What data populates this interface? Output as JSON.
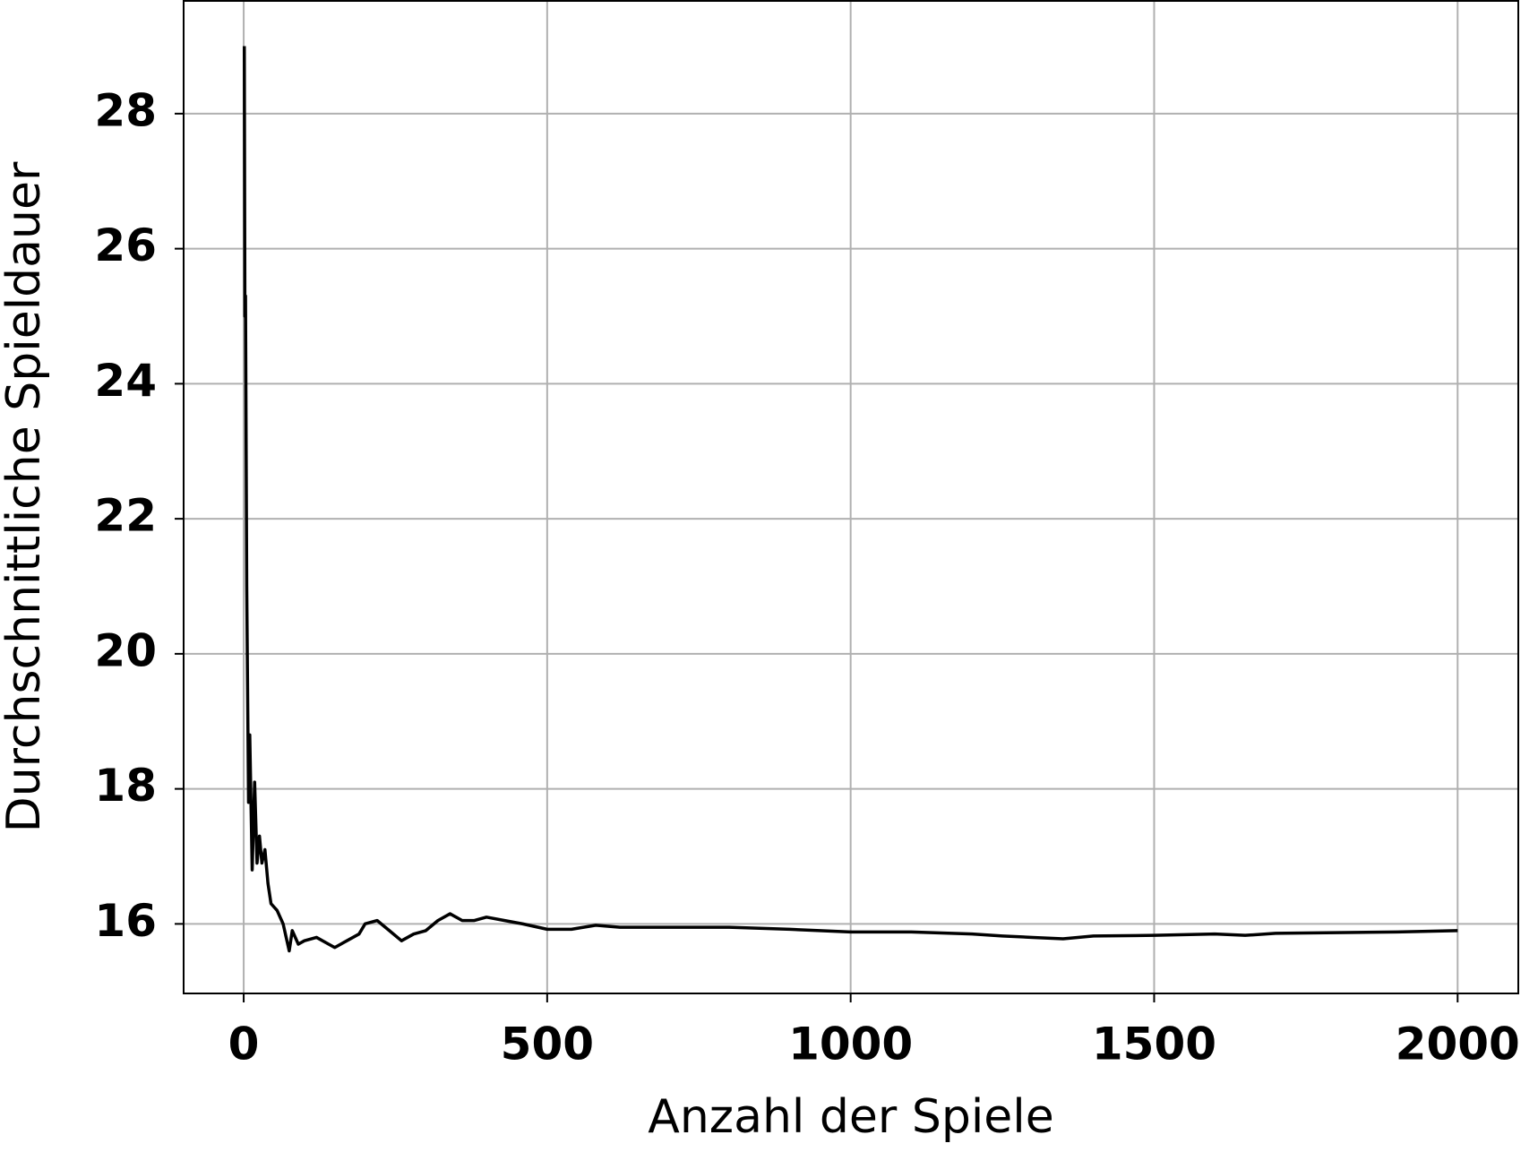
{
  "chart_data": {
    "type": "line",
    "xlabel": "Anzahl der Spiele",
    "ylabel": "Durchschnittliche Spieldauer",
    "x": [
      1,
      2,
      3,
      5,
      8,
      10,
      14,
      18,
      22,
      26,
      30,
      35,
      40,
      45,
      55,
      65,
      75,
      80,
      90,
      100,
      120,
      140,
      150,
      170,
      190,
      200,
      220,
      240,
      260,
      280,
      300,
      320,
      340,
      360,
      380,
      400,
      430,
      460,
      500,
      540,
      580,
      620,
      700,
      800,
      900,
      1000,
      1100,
      1200,
      1250,
      1300,
      1350,
      1400,
      1500,
      1600,
      1650,
      1700,
      1800,
      1900,
      2000
    ],
    "series": [
      {
        "name": "Durchschnittliche Spieldauer",
        "color": "#000000",
        "values": [
          29,
          25,
          25.3,
          21,
          17.8,
          18.8,
          16.8,
          18.1,
          16.9,
          17.3,
          16.9,
          17.1,
          16.6,
          16.3,
          16.2,
          16.0,
          15.6,
          15.9,
          15.7,
          15.75,
          15.8,
          15.7,
          15.65,
          15.75,
          15.85,
          16.0,
          16.05,
          15.9,
          15.75,
          15.85,
          15.9,
          16.05,
          16.15,
          16.05,
          16.05,
          16.1,
          16.05,
          16.0,
          15.92,
          15.92,
          15.98,
          15.95,
          15.95,
          15.95,
          15.92,
          15.88,
          15.88,
          15.85,
          15.82,
          15.8,
          15.78,
          15.82,
          15.83,
          15.85,
          15.83,
          15.86,
          15.87,
          15.88,
          15.9
        ]
      }
    ],
    "xlim": [
      -98.95,
      2099.95
    ],
    "xticks": [
      0,
      500,
      1000,
      1500,
      2000
    ],
    "ylim": [
      14.97,
      29.67
    ],
    "yticks": [
      16,
      18,
      20,
      22,
      24,
      26,
      28
    ],
    "grid": true
  }
}
